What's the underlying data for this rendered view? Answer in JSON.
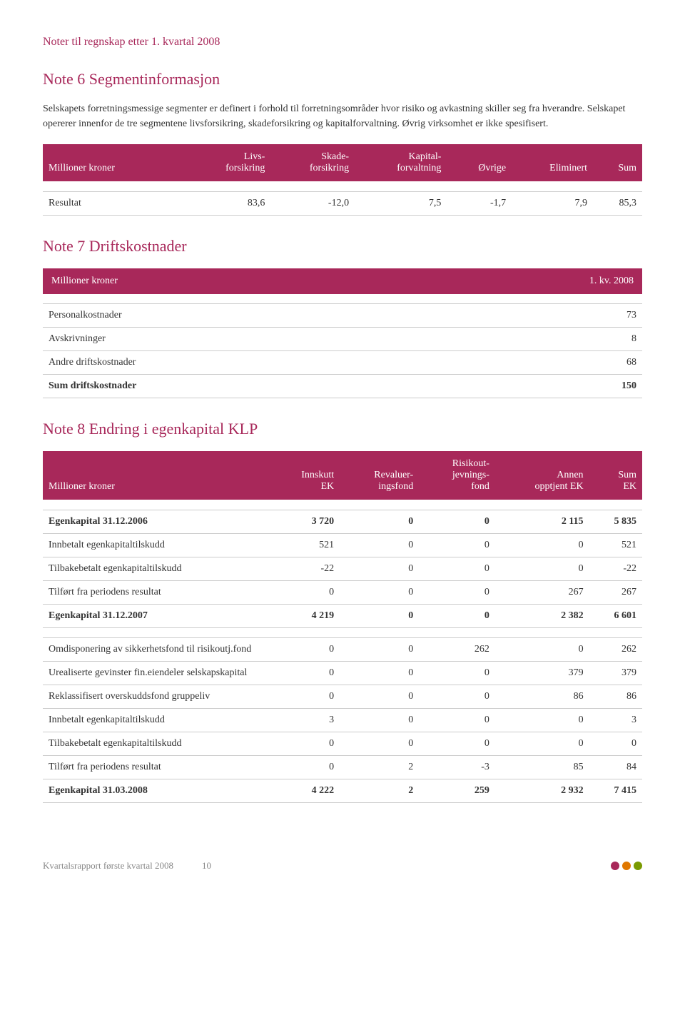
{
  "notes_title": "Noter til regnskap etter 1. kvartal 2008",
  "note6": {
    "heading": "Note 6 Segmentinformasjon",
    "body": "Selskapets forretningsmessige segmenter er definert i forhold til forretningsområder hvor risiko og avkastning skiller seg fra hverandre. Selskapet opererer innenfor de tre segmentene livsforsikring, skadeforsikring og kapitalforvaltning. Øvrig virksomhet er ikke spesifisert.",
    "col0": "Millioner kroner",
    "col1a": "Livs-",
    "col1b": "forsikring",
    "col2a": "Skade-",
    "col2b": "forsikring",
    "col3a": "Kapital-",
    "col3b": "forvaltning",
    "col4": "Øvrige",
    "col5": "Eliminert",
    "col6": "Sum",
    "row_label": "Resultat",
    "v1": "83,6",
    "v2": "-12,0",
    "v3": "7,5",
    "v4": "-1,7",
    "v5": "7,9",
    "v6": "85,3"
  },
  "note7": {
    "heading": "Note 7 Driftskostnader",
    "col0": "Millioner kroner",
    "col1": "1. kv. 2008",
    "r1l": "Personalkostnader",
    "r1v": "73",
    "r2l": "Avskrivninger",
    "r2v": "8",
    "r3l": "Andre driftskostnader",
    "r3v": "68",
    "r4l": "Sum driftskostnader",
    "r4v": "150"
  },
  "note8": {
    "heading": "Note 8 Endring i egenkapital KLP",
    "col0": "Millioner kroner",
    "c1a": "Innskutt",
    "c1b": "EK",
    "c2a": "Revaluer-",
    "c2b": "ingsfond",
    "c3a": "Risikout-",
    "c3b": "jevnings-",
    "c3c": "fond",
    "c4a": "Annen",
    "c4b": "opptjent EK",
    "c5a": "Sum",
    "c5b": "EK",
    "rows1": [
      {
        "l": "Egenkapital 31.12.2006",
        "bold": true,
        "v": [
          "3 720",
          "0",
          "0",
          "2 115",
          "5 835"
        ]
      },
      {
        "l": "Innbetalt egenkapitaltilskudd",
        "v": [
          "521",
          "0",
          "0",
          "0",
          "521"
        ]
      },
      {
        "l": "Tilbakebetalt egenkapitaltilskudd",
        "v": [
          "-22",
          "0",
          "0",
          "0",
          "-22"
        ]
      },
      {
        "l": "Tilført fra periodens resultat",
        "v": [
          "0",
          "0",
          "0",
          "267",
          "267"
        ]
      },
      {
        "l": "Egenkapital 31.12.2007",
        "bold": true,
        "v": [
          "4 219",
          "0",
          "0",
          "2 382",
          "6 601"
        ]
      }
    ],
    "rows2": [
      {
        "l": "Omdisponering av sikkerhetsfond til risikoutj.fond",
        "v": [
          "0",
          "0",
          "262",
          "0",
          "262"
        ]
      },
      {
        "l": "Urealiserte gevinster fin.eiendeler selskapskapital",
        "v": [
          "0",
          "0",
          "0",
          "379",
          "379"
        ]
      },
      {
        "l": "Reklassifisert overskuddsfond gruppeliv",
        "v": [
          "0",
          "0",
          "0",
          "86",
          "86"
        ]
      },
      {
        "l": "Innbetalt egenkapitaltilskudd",
        "v": [
          "3",
          "0",
          "0",
          "0",
          "3"
        ]
      },
      {
        "l": "Tilbakebetalt egenkapitaltilskudd",
        "v": [
          "0",
          "0",
          "0",
          "0",
          "0"
        ]
      },
      {
        "l": "Tilført fra periodens resultat",
        "v": [
          "0",
          "2",
          "-3",
          "85",
          "84"
        ]
      },
      {
        "l": "Egenkapital 31.03.2008",
        "bold": true,
        "v": [
          "4 222",
          "2",
          "259",
          "2 932",
          "7 415"
        ]
      }
    ]
  },
  "footer": {
    "text": "Kvartalsrapport første kvartal 2008",
    "page": "10",
    "dot_colors": [
      "#a8285a",
      "#e07800",
      "#7a9a01"
    ]
  }
}
